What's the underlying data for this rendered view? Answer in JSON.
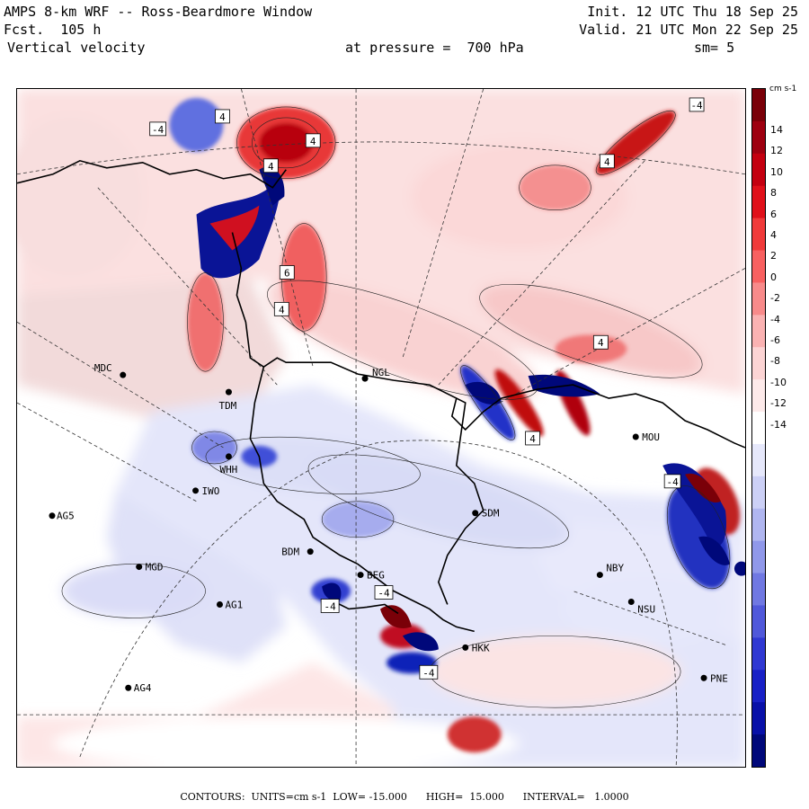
{
  "header": {
    "title": "AMPS 8-km WRF -- Ross-Beardmore Window",
    "forecast": "Fcst.  105 h",
    "field": "Vertical velocity",
    "pressure": "at pressure =  700 hPa",
    "init": "Init. 12 UTC Thu 18 Sep 25",
    "valid": "Valid. 21 UTC Mon 22 Sep 25",
    "smoothing": "sm= 5"
  },
  "colorbar": {
    "unit_label": "cm s-1",
    "ticks": [
      "14",
      "12",
      "10",
      "8",
      "6",
      "4",
      "2",
      "0",
      "-2",
      "-4",
      "-6",
      "-8",
      "-10",
      "-12",
      "-14"
    ],
    "colors": [
      "#7a0008",
      "#9e0010",
      "#c40010",
      "#e0101a",
      "#f03a3a",
      "#f86060",
      "#f88a8a",
      "#fab2b2",
      "#fcd4d4",
      "#fdeaea",
      "#ffffff",
      "#e6e8fb",
      "#ccd0f6",
      "#b0b6f0",
      "#9098ea",
      "#7078e2",
      "#5058da",
      "#3038d2",
      "#1820c6",
      "#0810a8",
      "#00087a"
    ]
  },
  "stations": [
    {
      "id": "MDC"
    },
    {
      "id": "TDM"
    },
    {
      "id": "NGL"
    },
    {
      "id": "WHH"
    },
    {
      "id": "IWO"
    },
    {
      "id": "AG5"
    },
    {
      "id": "SDM"
    },
    {
      "id": "BDM"
    },
    {
      "id": "MGD"
    },
    {
      "id": "BEG"
    },
    {
      "id": "AG1"
    },
    {
      "id": "MOU"
    },
    {
      "id": "NBY"
    },
    {
      "id": "NSU"
    },
    {
      "id": "HKK"
    },
    {
      "id": "PNE"
    },
    {
      "id": "AG4"
    }
  ],
  "contour_labels": [
    {
      "text": "-4"
    },
    {
      "text": "4"
    },
    {
      "text": "-4"
    },
    {
      "text": "4"
    },
    {
      "text": "4"
    },
    {
      "text": "4"
    },
    {
      "text": "6"
    },
    {
      "text": "4"
    },
    {
      "text": "4"
    },
    {
      "text": "4"
    },
    {
      "text": "-4"
    },
    {
      "text": "-4"
    },
    {
      "text": "-4"
    },
    {
      "text": "-4"
    }
  ],
  "footer": "CONTOURS:  UNITS=cm s-1  LOW= -15.000      HIGH=  15.000      INTERVAL=   1.0000"
}
